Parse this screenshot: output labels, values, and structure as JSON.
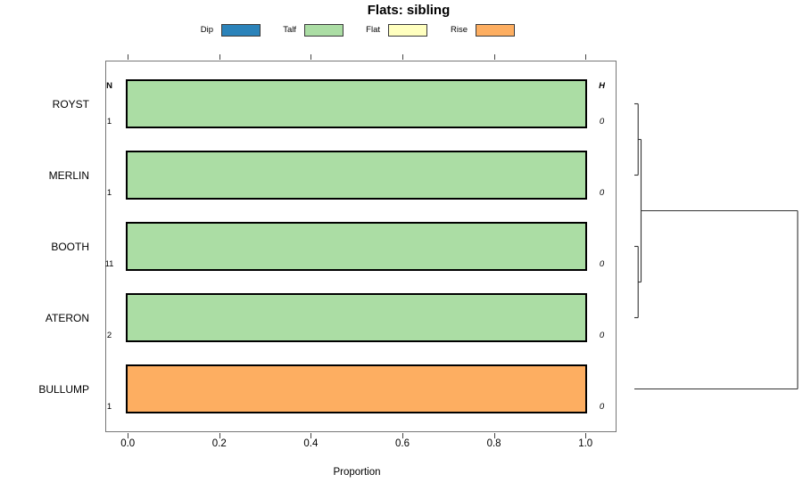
{
  "title": "Flats: sibling",
  "legend": {
    "items": [
      {
        "label": "Dip",
        "color": "#2b83ba"
      },
      {
        "label": "Talf",
        "color": "#abdda4"
      },
      {
        "label": "Flat",
        "color": "#ffffbf"
      },
      {
        "label": "Rise",
        "color": "#fdae61"
      }
    ]
  },
  "chart_data": {
    "type": "bar",
    "orientation": "horizontal-stacked",
    "title": "Flats: sibling",
    "xlabel": "Proportion",
    "xlim": [
      0,
      1
    ],
    "xticks": [
      "0.0",
      "0.2",
      "0.4",
      "0.6",
      "0.8",
      "1.0"
    ],
    "grid": false,
    "legend_position": "top",
    "left_column_header": "N",
    "right_column_header": "H",
    "classes": {
      "Dip": "#2b83ba",
      "Talf": "#abdda4",
      "Flat": "#ffffbf",
      "Rise": "#fdae61"
    },
    "categories": [
      "ROYST",
      "MERLIN",
      "BOOTH",
      "ATERON",
      "BULLUMP"
    ],
    "rows": [
      {
        "category": "ROYST",
        "n": "1",
        "h": "0",
        "segments": [
          {
            "class": "Talf",
            "value": 1.0
          }
        ]
      },
      {
        "category": "MERLIN",
        "n": "1",
        "h": "0",
        "segments": [
          {
            "class": "Talf",
            "value": 1.0
          }
        ]
      },
      {
        "category": "BOOTH",
        "n": "11",
        "h": "0",
        "segments": [
          {
            "class": "Talf",
            "value": 1.0
          }
        ]
      },
      {
        "category": "ATERON",
        "n": "2",
        "h": "0",
        "segments": [
          {
            "class": "Talf",
            "value": 1.0
          }
        ]
      },
      {
        "category": "BULLUMP",
        "n": "1",
        "h": "0",
        "segments": [
          {
            "class": "Rise",
            "value": 1.0
          }
        ]
      }
    ]
  },
  "dendrogram": {
    "leaves": [
      "ROYST",
      "MERLIN",
      "BOOTH",
      "ATERON",
      "BULLUMP"
    ],
    "tree": {
      "height": 1.0,
      "children": [
        {
          "height": 0.041,
          "children": [
            {
              "height": 0.023,
              "children": [
                {
                  "leaf": "ROYST"
                },
                {
                  "leaf": "MERLIN"
                }
              ]
            },
            {
              "height": 0.023,
              "children": [
                {
                  "leaf": "BOOTH"
                },
                {
                  "leaf": "ATERON"
                }
              ]
            }
          ]
        },
        {
          "leaf": "BULLUMP"
        }
      ]
    }
  }
}
